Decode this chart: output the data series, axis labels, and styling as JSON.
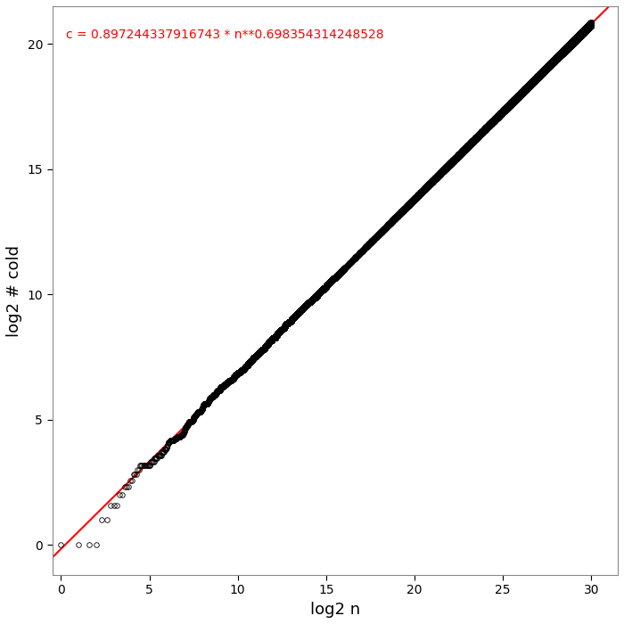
{
  "coeff": 0.897244337916743,
  "exponent": 0.698354314248528,
  "xlabel": "log2 n",
  "ylabel": "log2 # cold",
  "annotation": "c = 0.897244337916743 * n**0.698354314248528",
  "xlim": [
    -0.5,
    31.5
  ],
  "ylim": [
    -1.2,
    21.5
  ],
  "xticks": [
    0,
    5,
    10,
    15,
    20,
    25,
    30
  ],
  "yticks": [
    0,
    5,
    10,
    15,
    20
  ],
  "bg_color": "#ffffff",
  "line_color": "#ff0000",
  "point_color": "#000000",
  "annotation_color": "#ff0000",
  "annotation_fontsize": 10,
  "point_markersize": 4,
  "line_width": 1.5,
  "figsize": [
    7.0,
    7.0
  ],
  "dpi": 100
}
